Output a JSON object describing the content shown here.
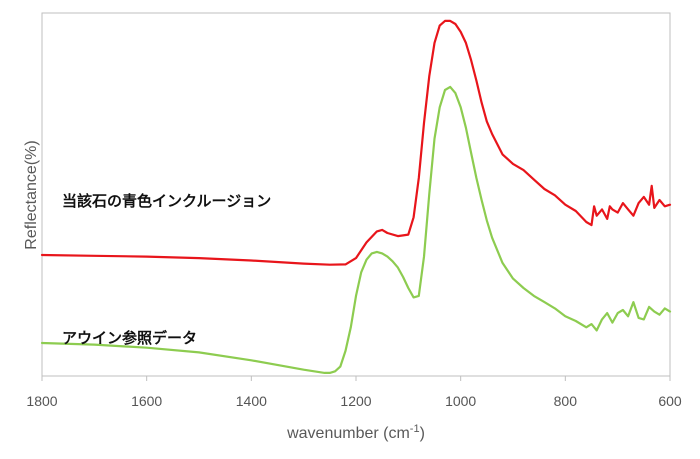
{
  "chart_data": {
    "type": "line",
    "xlabel": "wavenumber (cm",
    "xlabel_sup": "-1",
    "xlabel_close": ")",
    "ylabel": "Reflectance(%)",
    "xlim": [
      1800,
      600
    ],
    "x_reversed": true,
    "y_tick_labels_shown": false,
    "grid": false,
    "x_ticks": [
      "1800",
      "1600",
      "1400",
      "1200",
      "1000",
      "800",
      "600"
    ],
    "annotations": [
      {
        "text": "当該石の青色インクルージョン",
        "series": 0
      },
      {
        "text": "アウイン参照データ",
        "series": 1
      }
    ],
    "series": [
      {
        "color": "#e8151b",
        "x": [
          1800,
          1700,
          1600,
          1500,
          1400,
          1300,
          1250,
          1220,
          1200,
          1180,
          1160,
          1150,
          1140,
          1120,
          1100,
          1090,
          1080,
          1070,
          1060,
          1050,
          1040,
          1030,
          1020,
          1010,
          1000,
          990,
          980,
          970,
          960,
          950,
          940,
          920,
          900,
          880,
          860,
          840,
          820,
          800,
          780,
          760,
          750,
          745,
          740,
          730,
          720,
          715,
          710,
          700,
          690,
          680,
          670,
          660,
          650,
          640,
          635,
          630,
          620,
          610,
          600
        ],
        "y": [
          3.1,
          3.05,
          3.0,
          2.9,
          2.75,
          2.55,
          2.48,
          2.5,
          2.9,
          3.9,
          4.6,
          4.7,
          4.5,
          4.3,
          4.4,
          5.5,
          8.0,
          11.5,
          14.5,
          16.6,
          17.7,
          18.0,
          18.0,
          17.8,
          17.3,
          16.6,
          15.5,
          14.2,
          12.8,
          11.6,
          10.8,
          9.5,
          8.9,
          8.5,
          7.9,
          7.3,
          6.9,
          6.3,
          5.9,
          5.2,
          5.0,
          6.2,
          5.6,
          6.0,
          5.4,
          6.2,
          6.0,
          5.8,
          6.4,
          6.0,
          5.6,
          6.4,
          6.8,
          6.3,
          7.5,
          6.1,
          6.6,
          6.2,
          6.3
        ]
      },
      {
        "color": "#8dcc50",
        "x": [
          1800,
          1700,
          1600,
          1500,
          1400,
          1300,
          1260,
          1250,
          1240,
          1230,
          1220,
          1210,
          1200,
          1190,
          1180,
          1170,
          1160,
          1150,
          1140,
          1130,
          1120,
          1110,
          1100,
          1090,
          1080,
          1070,
          1060,
          1050,
          1040,
          1030,
          1020,
          1010,
          1000,
          990,
          980,
          970,
          960,
          950,
          940,
          920,
          900,
          880,
          860,
          840,
          820,
          800,
          780,
          760,
          750,
          740,
          730,
          720,
          710,
          700,
          690,
          680,
          670,
          660,
          650,
          640,
          630,
          620,
          610,
          600
        ],
        "y": [
          -2.5,
          -2.6,
          -2.8,
          -3.1,
          -3.6,
          -4.2,
          -4.4,
          -4.4,
          -4.3,
          -4.0,
          -3.0,
          -1.5,
          0.5,
          2.0,
          2.8,
          3.2,
          3.3,
          3.2,
          3.0,
          2.7,
          2.3,
          1.7,
          1.0,
          0.4,
          0.5,
          3.0,
          7.0,
          10.5,
          12.5,
          13.6,
          13.8,
          13.4,
          12.5,
          11.2,
          9.6,
          8.0,
          6.6,
          5.3,
          4.2,
          2.6,
          1.6,
          1.0,
          0.5,
          0.1,
          -0.3,
          -0.8,
          -1.1,
          -1.5,
          -1.3,
          -1.7,
          -1.0,
          -0.6,
          -1.2,
          -0.6,
          -0.4,
          -0.8,
          0.1,
          -0.9,
          -1.0,
          -0.2,
          -0.5,
          -0.7,
          -0.3,
          -0.5
        ]
      }
    ],
    "ylim": [
      -4.6,
      18.5
    ]
  }
}
